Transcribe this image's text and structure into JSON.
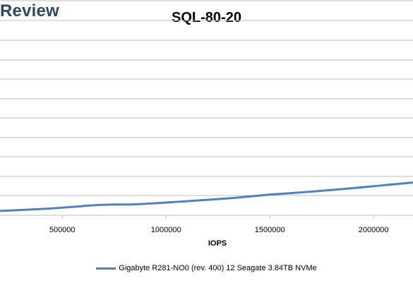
{
  "brand": "Review",
  "chart_data": {
    "type": "line",
    "title": "SQL-80-20",
    "xlabel": "IOPS",
    "ylabel": "",
    "x_ticks": [
      500000,
      1000000,
      1500000,
      2000000
    ],
    "x_tick_labels": [
      "500000",
      "1000000",
      "1500000",
      "2000000"
    ],
    "xlim": [
      200000,
      2190000
    ],
    "grid": "horizontal",
    "legend_position": "bottom",
    "series": [
      {
        "name": "Gigabyte R281-NO0 (rev. 400) 12 Seagate 3.84TB NVMe",
        "color": "#4f81bd",
        "points": [
          {
            "x": 200000,
            "y": 0.22
          },
          {
            "x": 400000,
            "y": 0.32
          },
          {
            "x": 550000,
            "y": 0.43
          },
          {
            "x": 650000,
            "y": 0.51
          },
          {
            "x": 750000,
            "y": 0.55
          },
          {
            "x": 850000,
            "y": 0.56
          },
          {
            "x": 1000000,
            "y": 0.65
          },
          {
            "x": 1200000,
            "y": 0.79
          },
          {
            "x": 1350000,
            "y": 0.91
          },
          {
            "x": 1500000,
            "y": 1.06
          },
          {
            "x": 1700000,
            "y": 1.21
          },
          {
            "x": 1900000,
            "y": 1.39
          },
          {
            "x": 2050000,
            "y": 1.54
          },
          {
            "x": 2190000,
            "y": 1.68
          }
        ]
      }
    ]
  }
}
